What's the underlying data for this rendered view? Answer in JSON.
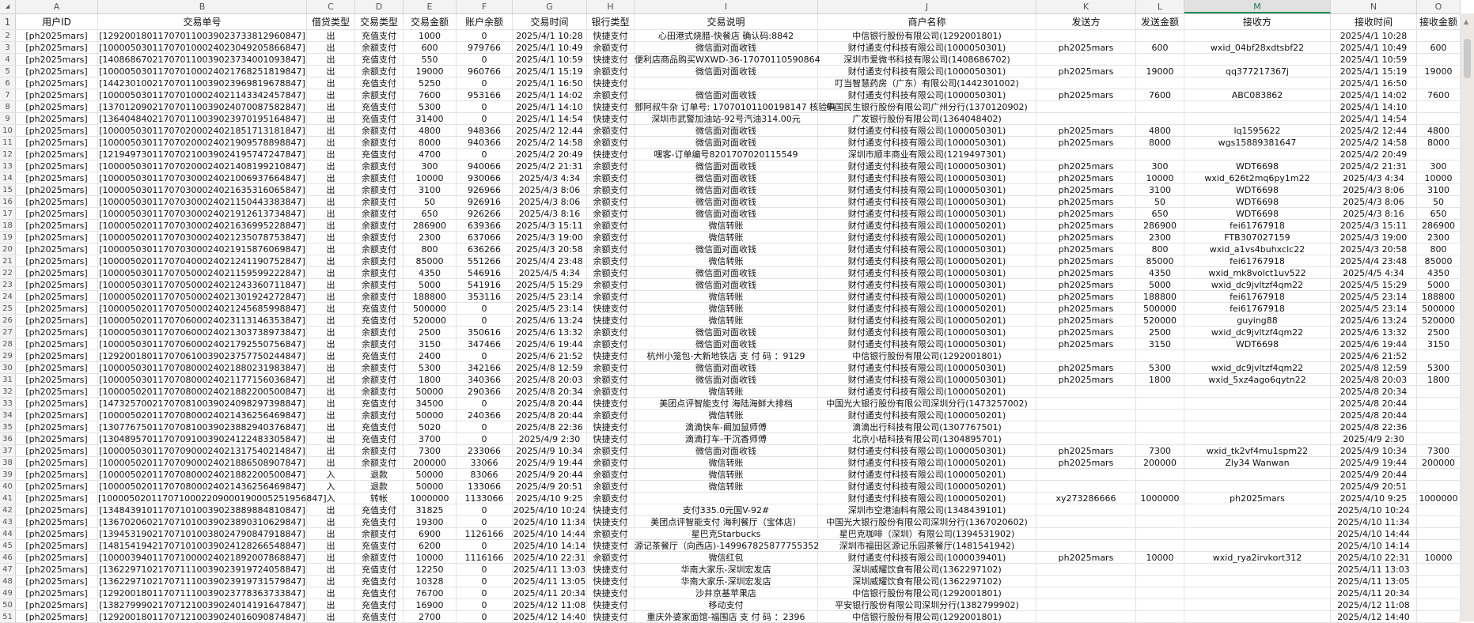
{
  "columns": [
    "A",
    "B",
    "C",
    "D",
    "E",
    "F",
    "G",
    "H",
    "I",
    "J",
    "K",
    "L",
    "M",
    "N",
    "O"
  ],
  "selected_column": "M",
  "headers": [
    "1",
    "用户ID",
    "交易单号",
    "借贷类型",
    "交易类型",
    "交易金额",
    "账户余额",
    "交易时间",
    "银行类型",
    "交易说明",
    "商户名称",
    "发送方",
    "发送金额",
    "接收方",
    "接收时间",
    "接收金额"
  ],
  "rows": [
    [
      "2",
      "[ph2025mars]",
      "[129200180117070110039023733812960847]",
      "出",
      "充值支付",
      "1000",
      "0",
      "2025/4/1 10:28",
      "快捷支付",
      "心田港式烧腊-快餐店 确认码:8842",
      "中信银行股份有限公司(1292001801)",
      "",
      "",
      "",
      "2025/4/1 10:28",
      ""
    ],
    [
      "3",
      "[ph2025mars]",
      "[100005030117070100024023049205866847]",
      "出",
      "余额支付",
      "600",
      "979766",
      "2025/4/1 10:49",
      "余额支付",
      "微信面对面收钱",
      "财付通支付科技有限公司(1000050301)",
      "ph2025mars",
      "600",
      "wxid_04bf28xdtsbf22",
      "2025/4/1 10:49",
      "600"
    ],
    [
      "4",
      "[ph2025mars]",
      "[140868670217070110039023734001093847]",
      "出",
      "充值支付",
      "550",
      "0",
      "2025/4/1 10:59",
      "快捷支付",
      "便利店商品购买WXWD-36-17070110590864",
      "深圳市爱微书科技有限公司(1408686702)",
      "",
      "",
      "",
      "2025/4/1 10:59",
      ""
    ],
    [
      "5",
      "[ph2025mars]",
      "[100005030117070100024021768251819847]",
      "出",
      "余额支付",
      "19000",
      "960766",
      "2025/4/1 15:19",
      "余额支付",
      "微信面对面收钱",
      "财付通支付科技有限公司(1000050301)",
      "ph2025mars",
      "19000",
      "qq377217367j",
      "2025/4/1 15:19",
      "19000"
    ],
    [
      "6",
      "[ph2025mars]",
      "[144230100217070110039023969819678847]",
      "出",
      "充值支付",
      "5250",
      "0",
      "2025/4/1 16:50",
      "快捷支付",
      "",
      "叮当智慧药房（广东）有限公司(1442301002)",
      "",
      "",
      "",
      "2025/4/1 16:50",
      ""
    ],
    [
      "7",
      "[ph2025mars]",
      "[100005030117070100024021143342457847]",
      "出",
      "余额支付",
      "7600",
      "953166",
      "2025/4/1 14:02",
      "余额支付",
      "微信面对面收钱",
      "财付通支付科技有限公司(1000050301)",
      "ph2025mars",
      "7600",
      "ABC083862",
      "2025/4/1 14:02",
      "7600"
    ],
    [
      "8",
      "[ph2025mars]",
      "[137012090217070110039024070087582847]",
      "出",
      "充值支付",
      "5300",
      "0",
      "2025/4/1 14:10",
      "快捷支付",
      "鄧阿叔牛杂 订单号: 17070101100198147 核验码",
      "中国民生银行股份有限公司广州分行(1370120902)",
      "",
      "",
      "",
      "2025/4/1 14:10",
      ""
    ],
    [
      "9",
      "[ph2025mars]",
      "[136404840217070110039023970195164847]",
      "出",
      "充值支付",
      "31400",
      "0",
      "2025/4/1 14:54",
      "快捷支付",
      "深圳市武警加油站-92号汽油314.00元",
      "广发银行股份有限公司(1364048402)",
      "",
      "",
      "",
      "2025/4/1 14:54",
      ""
    ],
    [
      "10",
      "[ph2025mars]",
      "[100005030117070200024021851713181847]",
      "出",
      "余额支付",
      "4800",
      "948366",
      "2025/4/2 12:44",
      "余额支付",
      "微信面对面收钱",
      "财付通支付科技有限公司(1000050301)",
      "ph2025mars",
      "4800",
      "lq1595622",
      "2025/4/2 12:44",
      "4800"
    ],
    [
      "11",
      "[ph2025mars]",
      "[100005030117070200024021909578898847]",
      "出",
      "余额支付",
      "8000",
      "940366",
      "2025/4/2 14:58",
      "余额支付",
      "微信面对面收钱",
      "财付通支付科技有限公司(1000050301)",
      "ph2025mars",
      "8000",
      "wgs15889381647",
      "2025/4/2 14:58",
      "8000"
    ],
    [
      "12",
      "[ph2025mars]",
      "[121949730117070210039024195747247847]",
      "出",
      "充值支付",
      "4700",
      "0",
      "2025/4/2 20:49",
      "快捷支付",
      "嘿客-订单编号8201707020115549",
      "深圳市顺丰商业有限公司(1219497301)",
      "",
      "",
      "",
      "2025/4/2 20:49",
      ""
    ],
    [
      "13",
      "[ph2025mars]",
      "[100005030117070200024021408199210847]",
      "出",
      "余额支付",
      "300",
      "940066",
      "2025/4/2 21:31",
      "余额支付",
      "微信面对面收钱",
      "财付通支付科技有限公司(1000050301)",
      "ph2025mars",
      "300",
      "WDT6698",
      "2025/4/2 21:31",
      "300"
    ],
    [
      "14",
      "[ph2025mars]",
      "[100005030117070300024021006937664847]",
      "出",
      "余额支付",
      "10000",
      "930066",
      "2025/4/3 4:34",
      "余额支付",
      "微信面对面收钱",
      "财付通支付科技有限公司(1000050301)",
      "ph2025mars",
      "10000",
      "wxid_626t2mq6py1m22",
      "2025/4/3 4:34",
      "10000"
    ],
    [
      "15",
      "[ph2025mars]",
      "[100005030117070300024021635316065847]",
      "出",
      "余额支付",
      "3100",
      "926966",
      "2025/4/3 8:06",
      "余额支付",
      "微信面对面收钱",
      "财付通支付科技有限公司(1000050301)",
      "ph2025mars",
      "3100",
      "WDT6698",
      "2025/4/3 8:06",
      "3100"
    ],
    [
      "16",
      "[ph2025mars]",
      "[100005030117070300024021150443383847]",
      "出",
      "余额支付",
      "50",
      "926916",
      "2025/4/3 8:06",
      "余额支付",
      "微信面对面收钱",
      "财付通支付科技有限公司(1000050301)",
      "ph2025mars",
      "50",
      "WDT6698",
      "2025/4/3 8:06",
      "50"
    ],
    [
      "17",
      "[ph2025mars]",
      "[100005030117070300024021912613734847]",
      "出",
      "余额支付",
      "650",
      "926266",
      "2025/4/3 8:16",
      "余额支付",
      "微信面对面收钱",
      "财付通支付科技有限公司(1000050301)",
      "ph2025mars",
      "650",
      "WDT6698",
      "2025/4/3 8:16",
      "650"
    ],
    [
      "18",
      "[ph2025mars]",
      "[100005020117070300024021636995228847]",
      "出",
      "余额支付",
      "286900",
      "639366",
      "2025/4/3 15:11",
      "余额支付",
      "微信转账",
      "财付通支付科技有限公司(1000050201)",
      "ph2025mars",
      "286900",
      "fei61767918",
      "2025/4/3 15:11",
      "286900"
    ],
    [
      "19",
      "[ph2025mars]",
      "[100005020117070300024021235078753847]",
      "出",
      "余额支付",
      "2300",
      "637066",
      "2025/4/3 19:00",
      "余额支付",
      "微信转账",
      "财付通支付科技有限公司(1000050201)",
      "ph2025mars",
      "2300",
      "FTB307027159",
      "2025/4/3 19:00",
      "2300"
    ],
    [
      "20",
      "[ph2025mars]",
      "[100005030117070300024021915876069847]",
      "出",
      "余额支付",
      "800",
      "636266",
      "2025/4/3 20:58",
      "余额支付",
      "微信面对面收钱",
      "财付通支付科技有限公司(1000050301)",
      "ph2025mars",
      "800",
      "wxid_a1vs4buhxclc22",
      "2025/4/3 20:58",
      "800"
    ],
    [
      "21",
      "[ph2025mars]",
      "[100005020117070400024021241190752847]",
      "出",
      "余额支付",
      "85000",
      "551266",
      "2025/4/4 23:48",
      "余额支付",
      "微信转账",
      "财付通支付科技有限公司(1000050201)",
      "ph2025mars",
      "85000",
      "fei61767918",
      "2025/4/4 23:48",
      "85000"
    ],
    [
      "22",
      "[ph2025mars]",
      "[100005030117070500024021159599222847]",
      "出",
      "余额支付",
      "4350",
      "546916",
      "2025/4/5 4:34",
      "余额支付",
      "微信面对面收钱",
      "财付通支付科技有限公司(1000050301)",
      "ph2025mars",
      "4350",
      "wxid_mk8volct1uv522",
      "2025/4/5 4:34",
      "4350"
    ],
    [
      "23",
      "[ph2025mars]",
      "[100005030117070500024021243360711847]",
      "出",
      "余额支付",
      "5000",
      "541916",
      "2025/4/5 15:29",
      "余额支付",
      "微信面对面收钱",
      "财付通支付科技有限公司(1000050301)",
      "ph2025mars",
      "5000",
      "wxid_dc9jvltzf4qm22",
      "2025/4/5 15:29",
      "5000"
    ],
    [
      "24",
      "[ph2025mars]",
      "[100005020117070500024021301924272847]",
      "出",
      "余额支付",
      "188800",
      "353116",
      "2025/4/5 23:14",
      "余额支付",
      "微信转账",
      "财付通支付科技有限公司(1000050201)",
      "ph2025mars",
      "188800",
      "fei61767918",
      "2025/4/5 23:14",
      "188800"
    ],
    [
      "25",
      "[ph2025mars]",
      "[100005020117070500024021245685998847]",
      "出",
      "充值支付",
      "500000",
      "0",
      "2025/4/5 23:14",
      "快捷支付",
      "微信转账",
      "财付通支付科技有限公司(1000050201)",
      "ph2025mars",
      "500000",
      "fei61767918",
      "2025/4/5 23:14",
      "500000"
    ],
    [
      "26",
      "[ph2025mars]",
      "[100005020117070600024023113146353847]",
      "出",
      "充值支付",
      "520000",
      "0",
      "2025/4/6 13:24",
      "快捷支付",
      "微信转账",
      "财付通支付科技有限公司(1000050201)",
      "ph2025mars",
      "520000",
      "guying88",
      "2025/4/6 13:24",
      "520000"
    ],
    [
      "27",
      "[ph2025mars]",
      "[100005030117070600024021303738973847]",
      "出",
      "余额支付",
      "2500",
      "350616",
      "2025/4/6 13:32",
      "余额支付",
      "微信面对面收钱",
      "财付通支付科技有限公司(1000050301)",
      "ph2025mars",
      "2500",
      "wxid_dc9jvltzf4qm22",
      "2025/4/6 13:32",
      "2500"
    ],
    [
      "28",
      "[ph2025mars]",
      "[100005030117070600024021792550756847]",
      "出",
      "余额支付",
      "3150",
      "347466",
      "2025/4/6 19:44",
      "余额支付",
      "微信面对面收钱",
      "财付通支付科技有限公司(1000050301)",
      "ph2025mars",
      "3150",
      "WDT6698",
      "2025/4/6 19:44",
      "3150"
    ],
    [
      "29",
      "[ph2025mars]",
      "[129200180117070610039023757750244847]",
      "出",
      "充值支付",
      "2400",
      "0",
      "2025/4/6 21:52",
      "快捷支付",
      "杭州小笼包-大新地铁店 支 付 码 ：9129",
      "中信银行股份有限公司(1292001801)",
      "",
      "",
      "",
      "2025/4/6 21:52",
      ""
    ],
    [
      "30",
      "[ph2025mars]",
      "[100005030117070800024021880231983847]",
      "出",
      "余额支付",
      "5300",
      "342166",
      "2025/4/8 12:59",
      "余额支付",
      "微信面对面收钱",
      "财付通支付科技有限公司(1000050301)",
      "ph2025mars",
      "5300",
      "wxid_dc9jvltzf4qm22",
      "2025/4/8 12:59",
      "5300"
    ],
    [
      "31",
      "[ph2025mars]",
      "[100005030117070800024021177156036847]",
      "出",
      "余额支付",
      "1800",
      "340366",
      "2025/4/8 20:03",
      "余额支付",
      "微信面对面收钱",
      "财付通支付科技有限公司(1000050301)",
      "ph2025mars",
      "1800",
      "wxid_5xz4ago6qytn22",
      "2025/4/8 20:03",
      "1800"
    ],
    [
      "32",
      "[ph2025mars]",
      "[100005020117070800024021882200500847]",
      "出",
      "余额支付",
      "50000",
      "290366",
      "2025/4/8 20:34",
      "余额支付",
      "微信转账",
      "财付通支付科技有限公司(1000050201)",
      "",
      "",
      "",
      "2025/4/8 20:34",
      ""
    ],
    [
      "33",
      "[ph2025mars]",
      "[147325700217070810039024098297398847]",
      "出",
      "充值支付",
      "34500",
      "0",
      "2025/4/8 20:44",
      "快捷支付",
      "美团点评智能支付 海陆海鲜大排档",
      "中国光大银行股份有限公司深圳分行(1473257002)",
      "",
      "",
      "",
      "2025/4/8 20:44",
      ""
    ],
    [
      "34",
      "[ph2025mars]",
      "[100005020117070800024021436256469847]",
      "出",
      "余额支付",
      "50000",
      "240366",
      "2025/4/8 20:44",
      "余额支付",
      "微信转账",
      "财付通支付科技有限公司(1000050201)",
      "",
      "",
      "",
      "2025/4/8 20:44",
      ""
    ],
    [
      "35",
      "[ph2025mars]",
      "[130776750117070810039023882940376847]",
      "出",
      "充值支付",
      "5020",
      "0",
      "2025/4/8 22:36",
      "快捷支付",
      "滴滴快车-阚加鼠师傅",
      "滴滴出行科技有限公司(1307767501)",
      "",
      "",
      "",
      "2025/4/8 22:36",
      ""
    ],
    [
      "36",
      "[ph2025mars]",
      "[130489570117070910039024122483305847]",
      "出",
      "充值支付",
      "3700",
      "0",
      "2025/4/9 2:30",
      "快捷支付",
      "滴滴打车-干沉香师傅",
      "北京小桔科技有限公司(1304895701)",
      "",
      "",
      "",
      "2025/4/9 2:30",
      ""
    ],
    [
      "37",
      "[ph2025mars]",
      "[100005030117070900024021317540214847]",
      "出",
      "余额支付",
      "7300",
      "233066",
      "2025/4/9 10:34",
      "余额支付",
      "微信面对面收钱",
      "财付通支付科技有限公司(1000050301)",
      "ph2025mars",
      "7300",
      "wxid_tk2vf4mu1spm22",
      "2025/4/9 10:34",
      "7300"
    ],
    [
      "38",
      "[ph2025mars]",
      "[100005020117070900024021886508907847]",
      "出",
      "余额支付",
      "200000",
      "33066",
      "2025/4/9 19:44",
      "余额支付",
      "微信转账",
      "财付通支付科技有限公司(1000050201)",
      "ph2025mars",
      "200000",
      "Zly34 Wanwan",
      "2025/4/9 19:44",
      "200000"
    ],
    [
      "39",
      "[ph2025mars]",
      "[100005020117070800024021882200500847]",
      "入",
      "退款",
      "50000",
      "83066",
      "2025/4/9 20:44",
      "余额支付",
      "微信转账",
      "财付通支付科技有限公司(1000050201)",
      "",
      "",
      "",
      "2025/4/9 20:44",
      ""
    ],
    [
      "40",
      "[ph2025mars]",
      "[100005020117070800024021436256469847]",
      "入",
      "退款",
      "50000",
      "133066",
      "2025/4/9 20:51",
      "余额支付",
      "微信转账",
      "财付通支付科技有限公司(1000050201)",
      "",
      "",
      "",
      "2025/4/9 20:51",
      ""
    ],
    [
      "41",
      "[ph2025mars]",
      "[1000050201170710002209000190005251956847]",
      "入",
      "转帐",
      "1000000",
      "1133066",
      "2025/4/10 9:25",
      "余额支付",
      "",
      "财付通支付科技有限公司(1000050201)",
      "xy273286666",
      "1000000",
      "ph2025mars",
      "2025/4/10 9:25",
      "1000000"
    ],
    [
      "42",
      "[ph2025mars]",
      "[134843910117071010039023889884810847]",
      "出",
      "充值支付",
      "31825",
      "0",
      "2025/4/10 10:24",
      "快捷支付",
      "支付335.0元国V-92#",
      "深圳市空港油料有限公司(1348439101)",
      "",
      "",
      "",
      "2025/4/10 10:24",
      ""
    ],
    [
      "43",
      "[ph2025mars]",
      "[136702060217071010039023890310629847]",
      "出",
      "充值支付",
      "19300",
      "0",
      "2025/4/10 11:34",
      "快捷支付",
      "美团点评智能支付 海利餐厅（宝体店）",
      "中国光大银行股份有限公司深圳分行(1367020602)",
      "",
      "",
      "",
      "2025/4/10 11:34",
      ""
    ],
    [
      "44",
      "[ph2025mars]",
      "[139453190217071010038024790847918847]",
      "出",
      "余额支付",
      "6900",
      "1126166",
      "2025/4/10 14:44",
      "余额支付",
      "星巴克Starbucks",
      "星巴克咖啡（深圳）有限公司(1394531902)",
      "",
      "",
      "",
      "2025/4/10 14:44",
      ""
    ],
    [
      "45",
      "[ph2025mars]",
      "[148154194217071010039024128266548847]",
      "出",
      "充值支付",
      "6200",
      "0",
      "2025/4/10 14:14",
      "快捷支付",
      "源记茶餐厅（向西店)-14996782587775535​2",
      "深圳市福田区源记乐园茶餐厅(1481541942)",
      "",
      "",
      "",
      "2025/4/10 14:14",
      ""
    ],
    [
      "46",
      "[ph2025mars]",
      "[100003940117071000024021892007868847]",
      "出",
      "余额支付",
      "10000",
      "1116166",
      "2025/4/10 22:31",
      "余额支付",
      "微信红包",
      "财付通支付科技有限公司(1000039401)",
      "ph2025mars",
      "10000",
      "wxid_rya2irvkort312",
      "2025/4/10 22:31",
      "10000"
    ],
    [
      "47",
      "[ph2025mars]",
      "[136229710217071110039023919724058847]",
      "出",
      "充值支付",
      "12250",
      "0",
      "2025/4/11 13:03",
      "快捷支付",
      "华南大家乐-深圳宏发店",
      "深圳威耀饮食有限公司(1362297102)",
      "",
      "",
      "",
      "2025/4/11 13:03",
      ""
    ],
    [
      "48",
      "[ph2025mars]",
      "[136229710217071110039023919731579847]",
      "出",
      "充值支付",
      "10328",
      "0",
      "2025/4/11 13:05",
      "快捷支付",
      "华南大家乐-深圳宏发店",
      "深圳威耀饮食有限公司(1362297102)",
      "",
      "",
      "",
      "2025/4/11 13:05",
      ""
    ],
    [
      "49",
      "[ph2025mars]",
      "[129200180117071110039023778363733847]",
      "出",
      "充值支付",
      "76700",
      "0",
      "2025/4/11 20:34",
      "快捷支付",
      "沙井京基苹果店",
      "中信银行股份有限公司(1292001801)",
      "",
      "",
      "",
      "2025/4/11 20:34",
      ""
    ],
    [
      "50",
      "[ph2025mars]",
      "[138279990217071210039024014191647847]",
      "出",
      "充值支付",
      "16900",
      "0",
      "2025/4/12 11:08",
      "快捷支付",
      "移动支付",
      "平安银行股份有限公司深圳分行(1382799902)",
      "",
      "",
      "",
      "2025/4/12 11:08",
      ""
    ],
    [
      "51",
      "[ph2025mars]",
      "[129200180117071210039024016090874847]",
      "出",
      "充值支付",
      "2700",
      "0",
      "2025/4/12 14:40",
      "快捷支付",
      "重庆外婆家面馆-福围店 支 付 码 ：2396",
      "中信银行股份有限公司(1292001801)",
      "",
      "",
      "",
      "2025/4/12 14:40",
      ""
    ]
  ]
}
